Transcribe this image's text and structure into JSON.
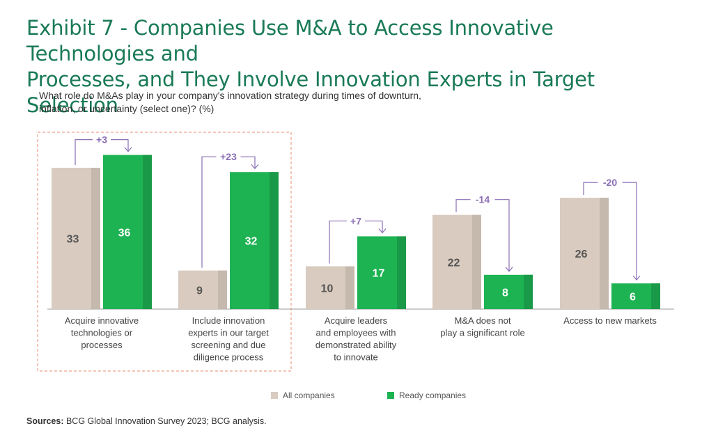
{
  "title_lines": [
    "Exhibit 7 - Companies Use M&A to Access Innovative Technologies and",
    "Processes, and They Involve Innovation Experts in Target Selection"
  ],
  "subtitle_lines": [
    "What role do M&As play in your company's innovation strategy during times of downturn,",
    "inflation, or uncertainty (select one)? (%)"
  ],
  "sources": {
    "label": "Sources:",
    "text": " BCG Global Innovation Survey 2023; BCG analysis."
  },
  "colors": {
    "all_companies": "#d9cbbf",
    "all_companies_shade": "#c5b8ad",
    "ready_companies": "#1db353",
    "ready_companies_shade": "#1a9a48",
    "delta": "#8a6fb5",
    "highlight_box": "#f0a08a",
    "title": "#197a56"
  },
  "chart_data": {
    "type": "bar",
    "categories": [
      [
        "Acquire innovative",
        "technologies or",
        "processes"
      ],
      [
        "Include innovation",
        "experts in our target",
        "screening and due",
        "diligence process"
      ],
      [
        "Acquire leaders",
        "and employees with",
        "demonstrated ability",
        "to innovate"
      ],
      [
        "M&A does not",
        "play a significant role"
      ],
      [
        "Access to new markets"
      ]
    ],
    "series": [
      {
        "name": "All companies",
        "values": [
          33,
          9,
          10,
          22,
          26
        ]
      },
      {
        "name": "Ready companies",
        "values": [
          36,
          32,
          17,
          8,
          6
        ]
      }
    ],
    "value_labels": [
      [
        "33",
        "9",
        "10",
        "22",
        "26"
      ],
      [
        "36",
        "32",
        "17",
        "8",
        "6"
      ]
    ],
    "deltas": [
      "+3",
      "+23",
      "+7",
      "-14",
      "-20"
    ],
    "highlighted_categories": [
      0,
      1
    ],
    "legend_position": "bottom",
    "ylim": [
      0,
      40
    ],
    "grid": false
  }
}
